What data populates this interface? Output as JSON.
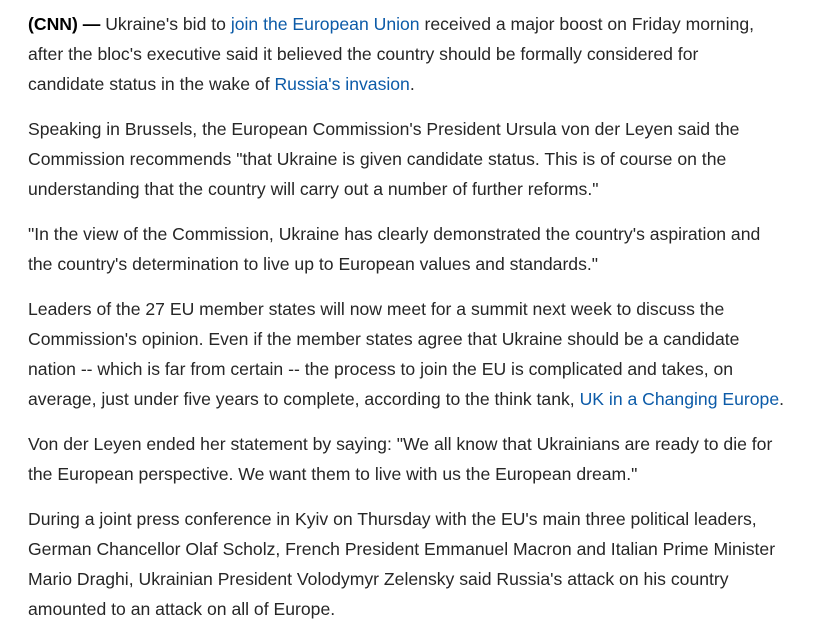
{
  "article": {
    "p1": {
      "dateline": "(CNN) —",
      "l1_a": " Ukraine's bid to ",
      "link_eu": "join the European Union",
      "l1_b": " received a major boost on Friday morning,",
      "l2": "after the bloc's executive said it believed the country should be formally considered for",
      "l3_a": "candidate status in the wake of ",
      "link_invasion": "Russia's invasion",
      "l3_b": "."
    },
    "p2": {
      "l1": "Speaking in Brussels, the European Commission's President Ursula von der Leyen said the",
      "l2": "Commission recommends \"that Ukraine is given candidate status. This is of course on the",
      "l3": "understanding that the country will carry out a number of further reforms.\""
    },
    "p3": {
      "l1": "\"In the view of the Commission, Ukraine has clearly demonstrated the country's aspiration and",
      "l2": "the country's determination to live up to European values and standards.\""
    },
    "p4": {
      "l1": "Leaders of the 27 EU member states will now meet for a summit next week to discuss the",
      "l2": "Commission's opinion. Even if the member states agree that Ukraine should be a candidate",
      "l3": "nation -- which is far from certain -- the process to join the EU is complicated and takes, on",
      "l4_a": "average, just under five years to complete, according to the think tank, ",
      "link_ukce": "UK in a Changing Europe",
      "l4_b": "."
    },
    "p5": {
      "l1": "Von der Leyen ended her statement by saying: \"We all know that Ukrainians are ready to die for",
      "l2": "the European perspective. We want them to live with us the European dream.\""
    },
    "p6": {
      "l1": "During a joint press conference in Kyiv on Thursday with the EU's main three political leaders,",
      "l2": "German Chancellor Olaf Scholz, French President Emmanuel Macron and Italian Prime Minister",
      "l3": "Mario Draghi, Ukrainian President Volodymyr Zelensky said Russia's attack on his country",
      "l4": "amounted to an attack on all of Europe."
    }
  },
  "colors": {
    "text": "#262626",
    "link": "#0c5ba8",
    "background": "#ffffff"
  }
}
